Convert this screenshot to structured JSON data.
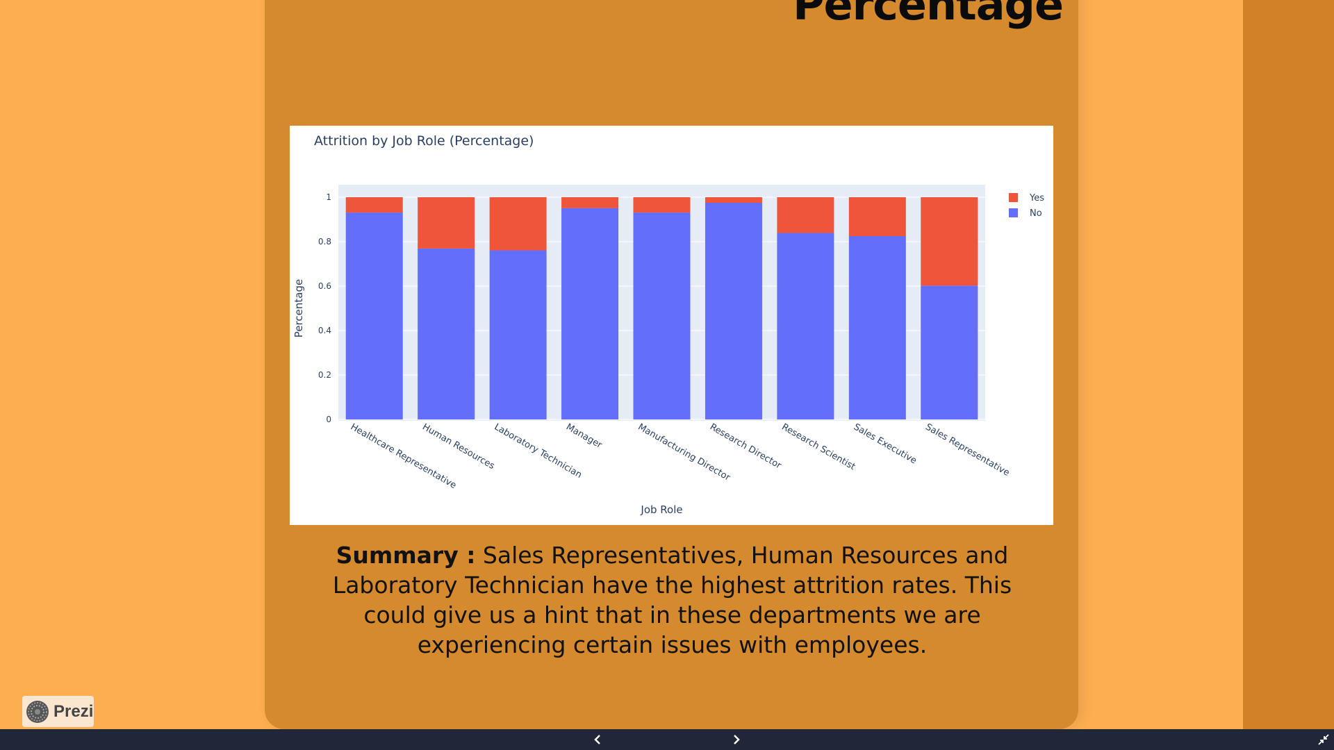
{
  "slide": {
    "title": "Percentage",
    "summary_label": "Summary :",
    "summary_text": " Sales Representatives, Human Resources and Laboratory Technician have the highest attrition rates. This could give us a hint that in these departments we are experiencing certain issues with employees."
  },
  "branding": {
    "logo_text": "Prezi"
  },
  "controls": {
    "prev_icon": "chevron-left-icon",
    "next_icon": "chevron-right-icon",
    "fullscreen_icon": "exit-fullscreen-icon"
  },
  "colors": {
    "no": "#636EFA",
    "yes": "#EF553B",
    "plot_bg": "#E5ECF6",
    "text": "#2a3f5f"
  },
  "chart_data": {
    "type": "bar",
    "stacked": true,
    "title": "Attrition by Job Role (Percentage)",
    "xlabel": "Job Role",
    "ylabel": "Percentage",
    "ylim": [
      0,
      1
    ],
    "yticks": [
      "0",
      "0.2",
      "0.4",
      "0.6",
      "0.8",
      "1"
    ],
    "categories": [
      "Healthcare Representative",
      "Human Resources",
      "Laboratory Technician",
      "Manager",
      "Manufacturing Director",
      "Research Director",
      "Research Scientist",
      "Sales Executive",
      "Sales Representative"
    ],
    "series": [
      {
        "name": "No",
        "values": [
          0.931,
          0.769,
          0.761,
          0.951,
          0.931,
          0.975,
          0.839,
          0.825,
          0.602
        ]
      },
      {
        "name": "Yes",
        "values": [
          0.069,
          0.231,
          0.239,
          0.049,
          0.069,
          0.025,
          0.161,
          0.175,
          0.398
        ]
      }
    ],
    "legend": {
      "placement": "top-right",
      "order": [
        "Yes",
        "No"
      ]
    }
  }
}
